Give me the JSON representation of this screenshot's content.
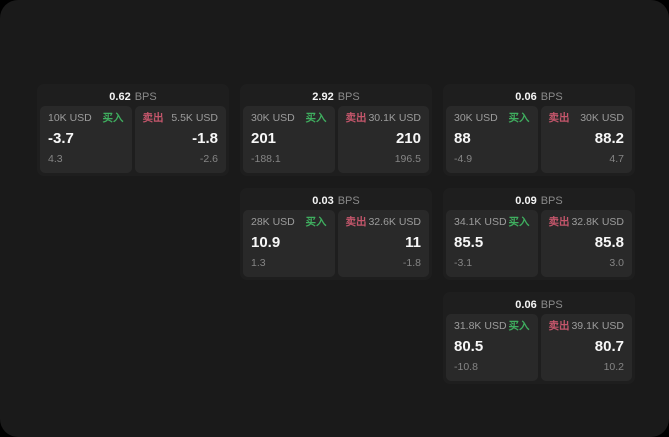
{
  "colors": {
    "page_background": "#1a1a1a",
    "card_background": "#1e1e1e",
    "panel_background": "#292929",
    "buy_green": "#3fae5f",
    "sell_red": "#c4566b",
    "primary_text": "#f7f7f7",
    "secondary_text": "#9c9c9c"
  },
  "unit_label": "BPS",
  "cards": [
    {
      "bps": "0.62",
      "unit": "BPS",
      "buy": {
        "amount": "10K USD",
        "side": "买入",
        "price": "-3.7",
        "change": "4.3"
      },
      "sell": {
        "side": "卖出",
        "amount": "5.5K USD",
        "price": "-1.8",
        "change": "-2.6"
      }
    },
    {
      "bps": "2.92",
      "unit": "BPS",
      "buy": {
        "amount": "30K USD",
        "side": "买入",
        "price": "201",
        "change": "-188.1"
      },
      "sell": {
        "side": "卖出",
        "amount": "30.1K USD",
        "price": "210",
        "change": "196.5"
      }
    },
    {
      "bps": "0.06",
      "unit": "BPS",
      "buy": {
        "amount": "30K USD",
        "side": "买入",
        "price": "88",
        "change": "-4.9"
      },
      "sell": {
        "side": "卖出",
        "amount": "30K USD",
        "price": "88.2",
        "change": "4.7"
      }
    },
    {
      "bps": "0.03",
      "unit": "BPS",
      "buy": {
        "amount": "28K USD",
        "side": "买入",
        "price": "10.9",
        "change": "1.3"
      },
      "sell": {
        "side": "卖出",
        "amount": "32.6K USD",
        "price": "11",
        "change": "-1.8"
      }
    },
    {
      "bps": "0.09",
      "unit": "BPS",
      "buy": {
        "amount": "34.1K USD",
        "side": "买入",
        "price": "85.5",
        "change": "-3.1"
      },
      "sell": {
        "side": "卖出",
        "amount": "32.8K USD",
        "price": "85.8",
        "change": "3.0"
      }
    },
    {
      "bps": "0.06",
      "unit": "BPS",
      "buy": {
        "amount": "31.8K USD",
        "side": "买入",
        "price": "80.5",
        "change": "-10.8"
      },
      "sell": {
        "side": "卖出",
        "amount": "39.1K USD",
        "price": "80.7",
        "change": "10.2"
      }
    }
  ]
}
